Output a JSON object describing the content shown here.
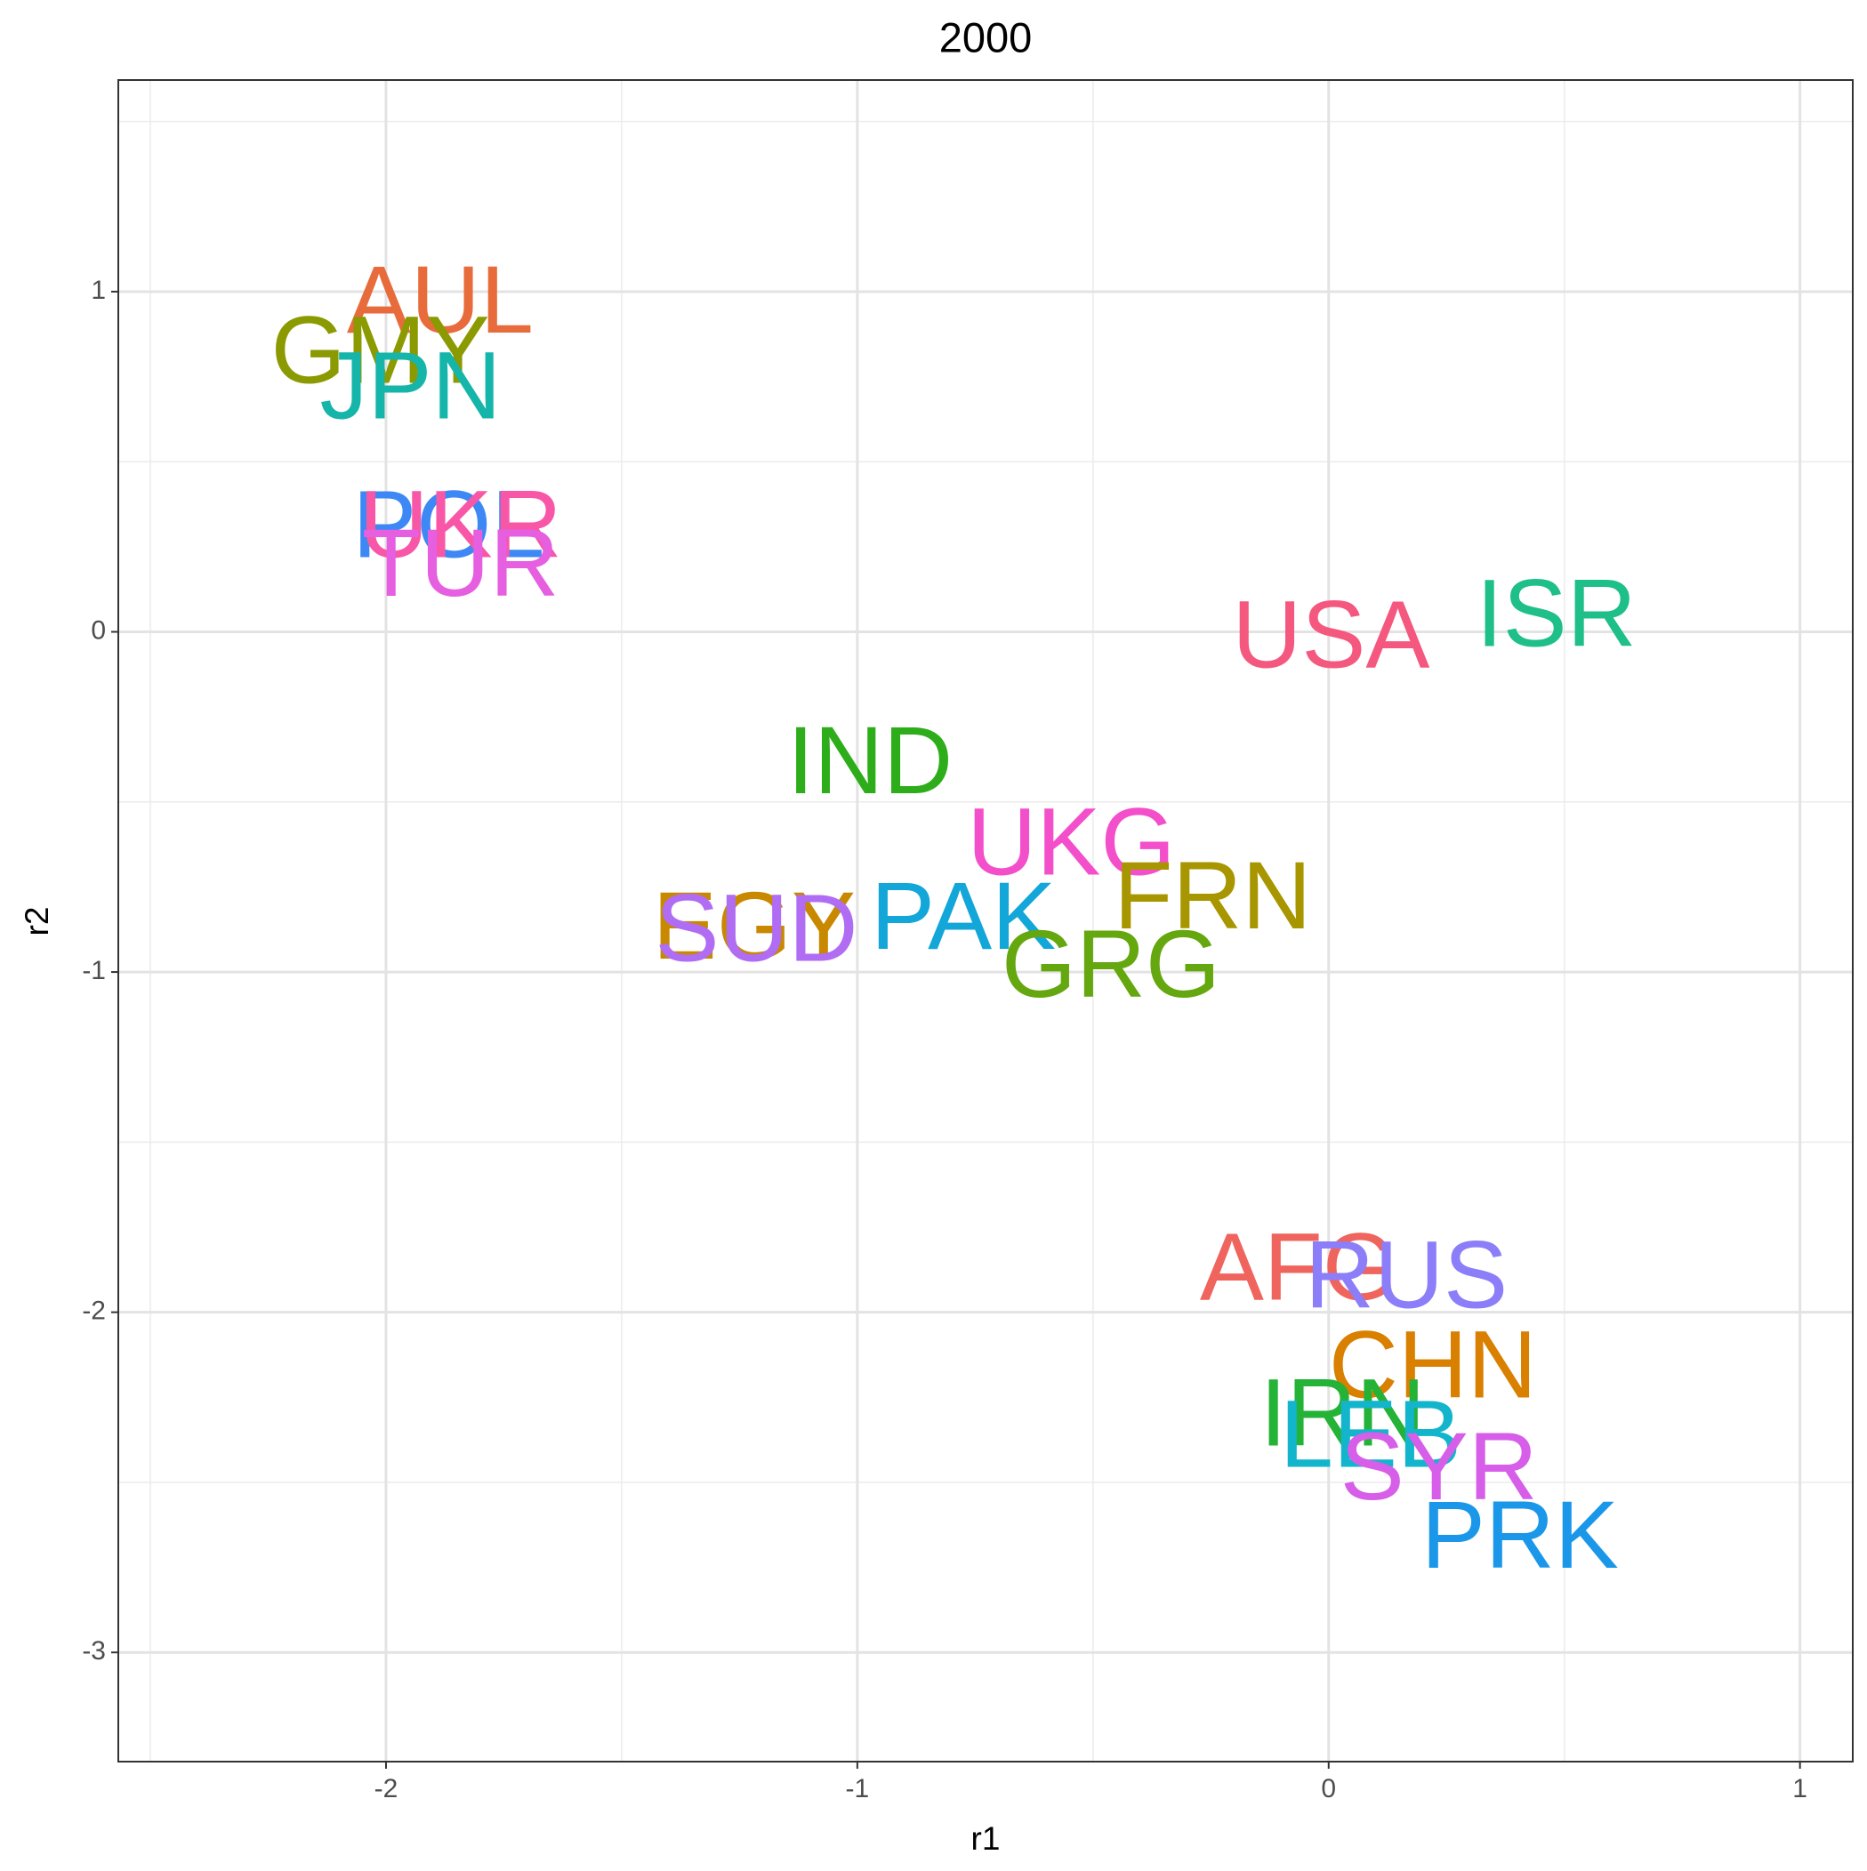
{
  "chart_data": {
    "type": "text-scatter",
    "title": "2000",
    "xlabel": "r1",
    "ylabel": "r2",
    "labels": [
      "AUL",
      "GMY",
      "JPN",
      "POL",
      "UKR",
      "TUR",
      "USA",
      "ISR",
      "IND",
      "UKG",
      "FRN",
      "PAK",
      "EGY",
      "SUD",
      "GRG",
      "AFG",
      "RUS",
      "CHN",
      "IRN",
      "LEB",
      "SYR",
      "PRK"
    ],
    "x": [
      -1.885,
      -2.012,
      -1.948,
      -1.867,
      -1.842,
      -1.842,
      0.005,
      0.483,
      -0.973,
      -0.546,
      -0.246,
      -0.775,
      -1.219,
      -1.214,
      -0.462,
      -0.064,
      0.165,
      0.221,
      0.03,
      0.089,
      0.234,
      0.406
    ],
    "y": [
      0.978,
      0.83,
      0.725,
      0.317,
      0.317,
      0.204,
      -0.007,
      0.056,
      -0.376,
      -0.616,
      -0.774,
      -0.834,
      -0.862,
      -0.869,
      -0.975,
      -1.865,
      -1.889,
      -2.153,
      -2.294,
      -2.357,
      -2.452,
      -2.653
    ],
    "colors": [
      "#e76b3b",
      "#8a9a00",
      "#16b5a9",
      "#3e88f5",
      "#f857a8",
      "#e55fe0",
      "#f5587f",
      "#1ebf89",
      "#2dad1a",
      "#f44fcb",
      "#a89600",
      "#13a6d9",
      "#c88800",
      "#b06cf3",
      "#64a70e",
      "#f0645e",
      "#8b7ef8",
      "#d98000",
      "#24b237",
      "#12b5cc",
      "#d65ee9",
      "#1b97ea"
    ],
    "xlim": [
      -2.568,
      1.112
    ],
    "ylim": [
      -3.321,
      1.622
    ],
    "xticks": [
      -2,
      -1,
      0,
      1
    ],
    "yticks": [
      -3,
      -2,
      -1,
      0,
      1
    ],
    "grid": true
  }
}
